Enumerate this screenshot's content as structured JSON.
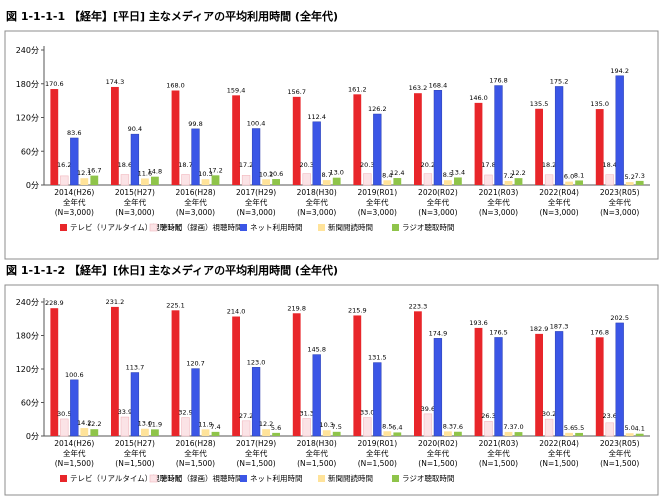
{
  "chart_data": [
    {
      "type": "bar",
      "title": "図 1-1-1-1 【経年】[平日] 主なメディアの平均利用時間 (全年代)",
      "ylim": [
        0,
        240
      ],
      "yticks": [
        "0分",
        "60分",
        "120分",
        "180分",
        "240分"
      ],
      "ytick_values": [
        0,
        60,
        120,
        180,
        240
      ],
      "categories": [
        [
          "2014(H26)",
          "全年代",
          "(N=3,000)"
        ],
        [
          "2015(H27)",
          "全年代",
          "(N=3,000)"
        ],
        [
          "2016(H28)",
          "全年代",
          "(N=3,000)"
        ],
        [
          "2017(H29)",
          "全年代",
          "(N=3,000)"
        ],
        [
          "2018(H30)",
          "全年代",
          "(N=3,000)"
        ],
        [
          "2019(R01)",
          "全年代",
          "(N=3,000)"
        ],
        [
          "2020(R02)",
          "全年代",
          "(N=3,000)"
        ],
        [
          "2021(R03)",
          "全年代",
          "(N=3,000)"
        ],
        [
          "2022(R04)",
          "全年代",
          "(N=3,000)"
        ],
        [
          "2023(R05)",
          "全年代",
          "(N=3,000)"
        ]
      ],
      "series": [
        {
          "name": "テレビ（リアルタイム）視聴時間",
          "values": [
            170.6,
            174.3,
            168.0,
            159.4,
            156.7,
            161.2,
            163.2,
            146.0,
            135.5,
            135.0
          ]
        },
        {
          "name": "テレビ（録画）視聴時間",
          "values": [
            16.2,
            18.6,
            18.7,
            17.2,
            20.3,
            20.3,
            20.2,
            17.8,
            18.2,
            18.4
          ]
        },
        {
          "name": "ネット利用時間",
          "values": [
            83.6,
            90.4,
            99.8,
            100.4,
            112.4,
            126.2,
            168.4,
            176.8,
            175.2,
            194.2
          ]
        },
        {
          "name": "新聞閲読時間",
          "values": [
            12.1,
            11.6,
            10.3,
            10.2,
            8.7,
            8.4,
            8.5,
            7.2,
            6.0,
            5.2
          ]
        },
        {
          "name": "ラジオ聴取時間",
          "values": [
            16.7,
            14.8,
            17.2,
            10.6,
            13.0,
            12.4,
            13.4,
            12.2,
            8.1,
            7.3
          ]
        }
      ],
      "legend_position": "bottom",
      "grid": false
    },
    {
      "type": "bar",
      "title": "図 1-1-1-2 【経年】[休日] 主なメディアの平均利用時間 (全年代)",
      "ylim": [
        0,
        240
      ],
      "yticks": [
        "0分",
        "60分",
        "120分",
        "180分",
        "240分"
      ],
      "ytick_values": [
        0,
        60,
        120,
        180,
        240
      ],
      "categories": [
        [
          "2014(H26)",
          "全年代",
          "(N=1,500)"
        ],
        [
          "2015(H27)",
          "全年代",
          "(N=1,500)"
        ],
        [
          "2016(H28)",
          "全年代",
          "(N=1,500)"
        ],
        [
          "2017(H29)",
          "全年代",
          "(N=1,500)"
        ],
        [
          "2018(H30)",
          "全年代",
          "(N=1,500)"
        ],
        [
          "2019(R01)",
          "全年代",
          "(N=1,500)"
        ],
        [
          "2020(R02)",
          "全年代",
          "(N=1,500)"
        ],
        [
          "2021(R03)",
          "全年代",
          "(N=1,500)"
        ],
        [
          "2022(R04)",
          "全年代",
          "(N=1,500)"
        ],
        [
          "2023(R05)",
          "全年代",
          "(N=1,500)"
        ]
      ],
      "series": [
        {
          "name": "テレビ（リアルタイム）視聴時間",
          "values": [
            228.9,
            231.2,
            225.1,
            214.0,
            219.8,
            215.9,
            223.3,
            193.6,
            182.9,
            176.8
          ]
        },
        {
          "name": "テレビ（録画）視聴時間",
          "values": [
            30.5,
            33.9,
            32.9,
            27.2,
            31.3,
            33.0,
            39.6,
            26.3,
            30.2,
            23.6
          ]
        },
        {
          "name": "ネット利用時間",
          "values": [
            100.6,
            113.7,
            120.7,
            123.0,
            145.8,
            131.5,
            174.9,
            176.5,
            187.3,
            202.5
          ]
        },
        {
          "name": "新聞閲読時間",
          "values": [
            14.2,
            13.0,
            11.9,
            12.2,
            10.3,
            8.5,
            8.3,
            7.3,
            5.6,
            5.0
          ]
        },
        {
          "name": "ラジオ聴取時間",
          "values": [
            12.2,
            11.9,
            7.4,
            5.6,
            7.5,
            6.4,
            7.6,
            7.0,
            5.5,
            4.1
          ]
        }
      ],
      "legend_position": "bottom",
      "grid": false
    }
  ],
  "colors": {
    "tv_realtime": "#e8262a",
    "tv_recorded": "#f2b8bf",
    "net": "#3b56e6",
    "newspaper": "#ffe39a",
    "radio": "#8fc44a",
    "border": "#8c8c8c",
    "axis": "#555555"
  }
}
